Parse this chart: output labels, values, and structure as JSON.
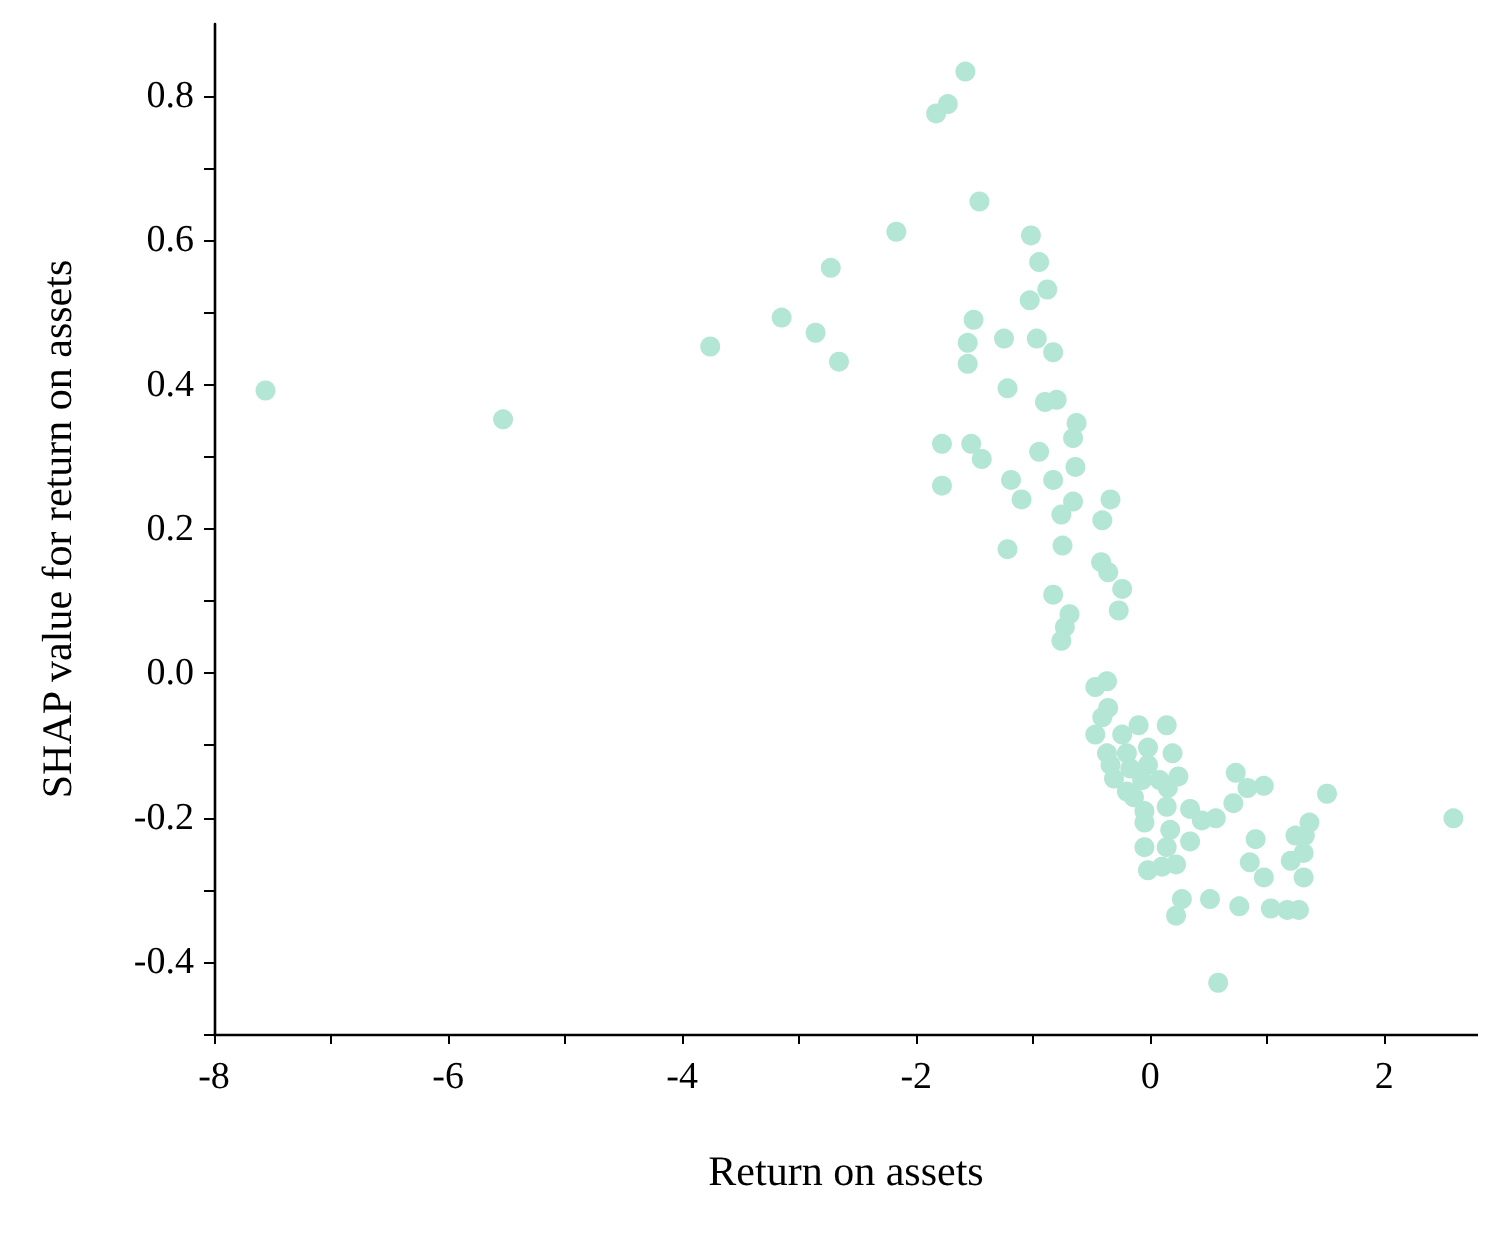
{
  "chart_data": {
    "type": "scatter",
    "xlabel": "Return on assets",
    "ylabel": "SHAP value for return on assets",
    "xlim": [
      -8,
      2.8
    ],
    "ylim": [
      -0.5,
      0.9
    ],
    "xticks": [
      -8,
      {
        "value": -7,
        "label": null
      },
      -6,
      {
        "value": -5,
        "label": null
      },
      -4,
      {
        "value": -3,
        "label": null
      },
      -2,
      {
        "value": -1,
        "label": null
      },
      0,
      {
        "value": 1,
        "label": null
      },
      2
    ],
    "yticks": [
      {
        "value": -0.5,
        "label": null
      },
      -0.4,
      {
        "value": -0.3,
        "label": null
      },
      -0.2,
      {
        "value": -0.1,
        "label": null
      },
      {
        "value": 0,
        "label": "0.0"
      },
      {
        "value": 0.1,
        "label": null
      },
      0.2,
      {
        "value": 0.3,
        "label": null
      },
      0.4,
      {
        "value": 0.5,
        "label": null
      },
      0.6,
      {
        "value": 0.7,
        "label": null
      },
      0.8
    ],
    "grid": false,
    "marker": "circle",
    "series": [
      {
        "color": "#b3e6d4",
        "x": [
          -1.58,
          -1.73,
          -1.83,
          -1.46,
          -2.17,
          -1.02,
          -2.73,
          -0.95,
          -0.88,
          -1.03,
          -1.51,
          -2.86,
          -1.56,
          -1.25,
          -0.97,
          -0.83,
          -2.66,
          -1.56,
          -1.22,
          -0.9,
          -0.8,
          -7.56,
          -5.53,
          -3.76,
          -3.15,
          -0.63,
          -0.66,
          -1.78,
          -1.53,
          -1.44,
          -0.95,
          -0.64,
          -1.78,
          -1.19,
          -0.83,
          -1.1,
          -0.66,
          -0.34,
          -0.76,
          -0.41,
          -1.22,
          -0.75,
          -0.42,
          -0.36,
          -0.24,
          -0.83,
          -0.27,
          -0.69,
          -0.73,
          -0.76,
          -0.47,
          -0.37,
          -0.36,
          -0.41,
          -0.47,
          -0.24,
          -0.1,
          0.14,
          -0.37,
          -0.2,
          -0.02,
          0.19,
          -0.34,
          -0.17,
          -0.02,
          -0.31,
          -0.07,
          0.08,
          0.24,
          -0.2,
          -0.14,
          0.15,
          0.73,
          0.83,
          0.97,
          1.51,
          2.59,
          -0.05,
          0.14,
          0.34,
          0.44,
          0.56,
          0.71,
          -0.05,
          0.17,
          0.34,
          1.36,
          1.24,
          1.32,
          0.9,
          1.31,
          -0.05,
          0.14,
          1.2,
          0.85,
          -0.02,
          0.1,
          0.22,
          0.97,
          1.31,
          0.27,
          0.51,
          0.76,
          1.03,
          1.17,
          1.27,
          0.22,
          0.58
        ],
        "values": [
          0.834,
          0.789,
          0.776,
          0.654,
          0.612,
          0.607,
          0.562,
          0.57,
          0.532,
          0.517,
          0.49,
          0.472,
          0.458,
          0.464,
          0.464,
          0.445,
          0.432,
          0.429,
          0.395,
          0.376,
          0.379,
          0.392,
          0.352,
          0.453,
          0.493,
          0.347,
          0.326,
          0.318,
          0.318,
          0.297,
          0.307,
          0.286,
          0.26,
          0.268,
          0.268,
          0.241,
          0.238,
          0.241,
          0.22,
          0.212,
          0.172,
          0.177,
          0.154,
          0.14,
          0.117,
          0.109,
          0.087,
          0.082,
          0.064,
          0.045,
          -0.019,
          -0.011,
          -0.048,
          -0.061,
          -0.085,
          -0.085,
          -0.072,
          -0.072,
          -0.111,
          -0.111,
          -0.103,
          -0.111,
          -0.127,
          -0.132,
          -0.127,
          -0.146,
          -0.148,
          -0.148,
          -0.143,
          -0.164,
          -0.172,
          -0.159,
          -0.138,
          -0.159,
          -0.156,
          -0.167,
          -0.201,
          -0.191,
          -0.185,
          -0.188,
          -0.204,
          -0.201,
          -0.18,
          -0.207,
          -0.217,
          -0.233,
          -0.207,
          -0.225,
          -0.225,
          -0.23,
          -0.249,
          -0.241,
          -0.241,
          -0.26,
          -0.262,
          -0.273,
          -0.268,
          -0.265,
          -0.283,
          -0.283,
          -0.313,
          -0.313,
          -0.323,
          -0.326,
          -0.328,
          -0.328,
          -0.336,
          -0.429
        ]
      }
    ]
  }
}
